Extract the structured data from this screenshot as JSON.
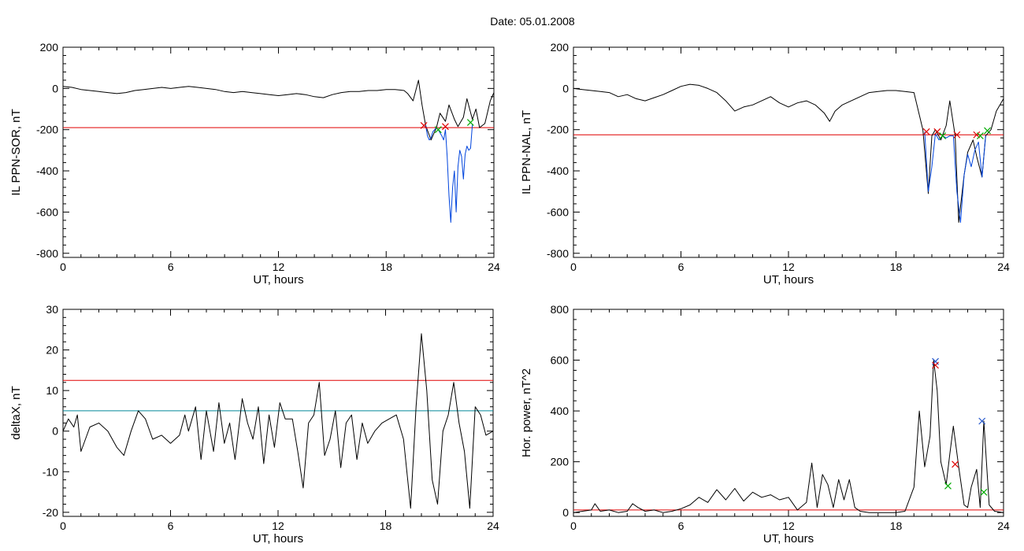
{
  "page": {
    "title": "Date:  05.01.2008"
  },
  "chart_data": [
    {
      "type": "line",
      "panel": "top-left",
      "title": "",
      "xlabel": "UT, hours",
      "ylabel": "IL PPN-SOR, nT",
      "xlim": [
        0,
        24
      ],
      "ylim": [
        -820,
        200
      ],
      "xticks": [
        "0",
        "6",
        "12",
        "18",
        "24"
      ],
      "yticks": [
        "200",
        "0",
        "-200",
        "-400",
        "-600",
        "-800"
      ],
      "threshold": {
        "value": -190,
        "color": "#e00000"
      },
      "series": [
        {
          "color": "#000000",
          "x": [
            0,
            0.5,
            1,
            1.5,
            2,
            2.5,
            3,
            3.5,
            4,
            4.5,
            5,
            5.5,
            6,
            6.5,
            7,
            7.5,
            8,
            8.5,
            9,
            9.5,
            10,
            10.5,
            11,
            11.5,
            12,
            12.5,
            13,
            13.5,
            14,
            14.5,
            15,
            15.5,
            16,
            16.5,
            17,
            17.5,
            18,
            18.5,
            19,
            19.2,
            19.5,
            19.8,
            20.0,
            20.2,
            20.5,
            20.8,
            21.0,
            21.3,
            21.5,
            21.8,
            22.0,
            22.3,
            22.5,
            22.8,
            23.0,
            23.2,
            23.5,
            23.8,
            24.0
          ],
          "y": [
            10,
            5,
            -5,
            -10,
            -15,
            -20,
            -25,
            -20,
            -10,
            -5,
            0,
            5,
            0,
            5,
            10,
            5,
            0,
            -5,
            -15,
            -20,
            -15,
            -20,
            -25,
            -30,
            -35,
            -30,
            -25,
            -30,
            -40,
            -45,
            -30,
            -20,
            -15,
            -15,
            -10,
            -10,
            -5,
            -5,
            -10,
            -25,
            -60,
            40,
            -80,
            -180,
            -250,
            -190,
            -120,
            -160,
            -80,
            -150,
            -185,
            -140,
            -50,
            -150,
            -100,
            -190,
            -170,
            -60,
            -20
          ]
        },
        {
          "color": "#0044dd",
          "x": [
            20.2,
            20.3,
            20.4,
            20.5,
            20.6,
            20.7,
            20.8,
            20.9,
            21.0,
            21.1,
            21.2,
            21.3,
            21.4,
            21.5,
            21.6,
            21.7,
            21.8,
            21.9,
            22.0,
            22.1,
            22.2,
            22.3,
            22.4,
            22.5,
            22.6,
            22.7,
            22.8
          ],
          "y": [
            -180,
            -230,
            -250,
            -240,
            -210,
            -200,
            -190,
            -200,
            -215,
            -230,
            -250,
            -200,
            -330,
            -520,
            -650,
            -480,
            -400,
            -600,
            -380,
            -300,
            -330,
            -440,
            -320,
            -280,
            -300,
            -290,
            -175
          ]
        }
      ],
      "markers": [
        {
          "x": 20.1,
          "y": -180,
          "color": "#dd0000"
        },
        {
          "x": 20.9,
          "y": -200,
          "color": "#00aa00"
        },
        {
          "x": 21.3,
          "y": -185,
          "color": "#dd0000"
        },
        {
          "x": 22.7,
          "y": -165,
          "color": "#00aa00"
        }
      ]
    },
    {
      "type": "line",
      "panel": "top-right",
      "title": "",
      "xlabel": "UT, hours",
      "ylabel": "IL PPN-NAL, nT",
      "xlim": [
        0,
        24
      ],
      "ylim": [
        -820,
        200
      ],
      "xticks": [
        "0",
        "6",
        "12",
        "18",
        "24"
      ],
      "yticks": [
        "200",
        "0",
        "-200",
        "-400",
        "-600",
        "-800"
      ],
      "threshold": {
        "value": -225,
        "color": "#e00000"
      },
      "series": [
        {
          "color": "#000000",
          "x": [
            0,
            0.5,
            1,
            1.5,
            2,
            2.5,
            3,
            3.5,
            4,
            4.5,
            5,
            5.5,
            6,
            6.5,
            7,
            7.5,
            8,
            8.5,
            9,
            9.5,
            10,
            10.5,
            11,
            11.5,
            12,
            12.5,
            13,
            13.5,
            14,
            14.3,
            14.6,
            15,
            15.5,
            16,
            16.5,
            17,
            17.5,
            18,
            18.5,
            19,
            19.5,
            19.8,
            20.0,
            20.2,
            20.5,
            20.8,
            21.0,
            21.3,
            21.5,
            21.8,
            22.0,
            22.3,
            22.5,
            22.8,
            23.0,
            23.3,
            23.6,
            24.0
          ],
          "y": [
            0,
            -5,
            -10,
            -15,
            -20,
            -40,
            -30,
            -50,
            -60,
            -45,
            -30,
            -10,
            10,
            20,
            15,
            0,
            -20,
            -60,
            -110,
            -90,
            -80,
            -60,
            -40,
            -70,
            -90,
            -70,
            -60,
            -80,
            -120,
            -160,
            -110,
            -80,
            -60,
            -40,
            -20,
            -15,
            -10,
            -10,
            -15,
            -20,
            -200,
            -510,
            -230,
            -200,
            -250,
            -180,
            -60,
            -230,
            -650,
            -420,
            -310,
            -250,
            -330,
            -430,
            -230,
            -200,
            -110,
            -50
          ]
        },
        {
          "color": "#0044dd",
          "x": [
            19.6,
            19.8,
            20.0,
            20.2,
            20.4,
            20.6,
            20.8,
            21.0,
            21.2,
            21.4,
            21.6,
            21.8,
            22.0,
            22.2,
            22.4,
            22.6,
            22.8,
            23.0
          ],
          "y": [
            -210,
            -500,
            -380,
            -220,
            -250,
            -230,
            -240,
            -230,
            -230,
            -500,
            -650,
            -420,
            -320,
            -380,
            -300,
            -260,
            -430,
            -230
          ]
        }
      ],
      "markers": [
        {
          "x": 19.7,
          "y": -210,
          "color": "#dd0000"
        },
        {
          "x": 20.3,
          "y": -210,
          "color": "#dd0000"
        },
        {
          "x": 20.6,
          "y": -230,
          "color": "#00aa00"
        },
        {
          "x": 21.4,
          "y": -225,
          "color": "#dd0000"
        },
        {
          "x": 22.5,
          "y": -225,
          "color": "#dd0000"
        },
        {
          "x": 22.7,
          "y": -230,
          "color": "#00aa00"
        },
        {
          "x": 23.1,
          "y": -205,
          "color": "#00aa00"
        }
      ]
    },
    {
      "type": "line",
      "panel": "bottom-left",
      "title": "",
      "xlabel": "UT, hours",
      "ylabel": "deltaX, nT",
      "xlim": [
        0,
        24
      ],
      "ylim": [
        -21,
        30
      ],
      "xticks": [
        "0",
        "6",
        "12",
        "18",
        "24"
      ],
      "yticks": [
        "30",
        "20",
        "10",
        "0",
        "-10",
        "-20"
      ],
      "thresholds": [
        {
          "value": 12.5,
          "color": "#e00000"
        },
        {
          "value": 5,
          "color": "#008899"
        }
      ],
      "series": [
        {
          "color": "#000000",
          "x": [
            0,
            0.3,
            0.6,
            0.8,
            1.0,
            1.5,
            2.0,
            2.5,
            3.0,
            3.4,
            3.8,
            4.2,
            4.6,
            5.0,
            5.5,
            6.0,
            6.5,
            6.8,
            7.0,
            7.4,
            7.7,
            8.0,
            8.4,
            8.7,
            9.0,
            9.3,
            9.6,
            10.0,
            10.3,
            10.6,
            10.9,
            11.2,
            11.5,
            11.8,
            12.1,
            12.4,
            12.8,
            13.1,
            13.4,
            13.7,
            14.0,
            14.3,
            14.6,
            14.9,
            15.2,
            15.5,
            15.8,
            16.1,
            16.4,
            16.7,
            17.0,
            17.4,
            17.8,
            18.2,
            18.6,
            19.0,
            19.4,
            19.7,
            20.0,
            20.3,
            20.6,
            20.9,
            21.2,
            21.5,
            21.8,
            22.1,
            22.4,
            22.7,
            23.0,
            23.3,
            23.6,
            24.0
          ],
          "y": [
            0,
            3,
            1,
            4,
            -5,
            1,
            2,
            0,
            -4,
            -6,
            0,
            5,
            3,
            -2,
            -1,
            -3,
            -1,
            4,
            0,
            6,
            -7,
            5,
            -5,
            7,
            -3,
            2,
            -7,
            8,
            2,
            -2,
            6,
            -8,
            4,
            -4,
            7,
            3,
            3,
            -5,
            -14,
            2,
            4,
            12,
            -6,
            -2,
            5,
            -9,
            2,
            4,
            -7,
            2,
            -3,
            0,
            2,
            3,
            4,
            -2,
            -19,
            6,
            24,
            10,
            -12,
            -18,
            0,
            4,
            12,
            2,
            -5,
            -19,
            6,
            4,
            -1,
            0
          ]
        }
      ]
    },
    {
      "type": "line",
      "panel": "bottom-right",
      "title": "",
      "xlabel": "UT, hours",
      "ylabel": "Hor. power, nT^2",
      "xlim": [
        0,
        24
      ],
      "ylim": [
        -15,
        800
      ],
      "xticks": [
        "0",
        "6",
        "12",
        "18",
        "24"
      ],
      "yticks": [
        "800",
        "600",
        "400",
        "200",
        "0"
      ],
      "threshold": {
        "value": 10,
        "color": "#e00000"
      },
      "series": [
        {
          "color": "#000000",
          "x": [
            0,
            0.5,
            1.0,
            1.2,
            1.5,
            2.0,
            2.5,
            3.0,
            3.3,
            3.6,
            4.0,
            4.5,
            5.0,
            5.5,
            6.0,
            6.5,
            7.0,
            7.5,
            8.0,
            8.5,
            9.0,
            9.5,
            10.0,
            10.5,
            11.0,
            11.5,
            12.0,
            12.5,
            13.0,
            13.3,
            13.6,
            13.9,
            14.2,
            14.5,
            14.8,
            15.1,
            15.4,
            15.7,
            16.0,
            16.5,
            17.0,
            17.5,
            18.0,
            18.5,
            19.0,
            19.3,
            19.6,
            19.9,
            20.1,
            20.3,
            20.5,
            20.8,
            21.0,
            21.2,
            21.5,
            21.8,
            22.0,
            22.2,
            22.5,
            22.7,
            22.9,
            23.2,
            23.5,
            24.0
          ],
          "y": [
            0,
            5,
            10,
            35,
            5,
            10,
            0,
            5,
            35,
            20,
            5,
            10,
            0,
            5,
            15,
            30,
            60,
            40,
            90,
            50,
            95,
            45,
            80,
            60,
            70,
            50,
            60,
            10,
            40,
            195,
            20,
            150,
            110,
            20,
            130,
            50,
            130,
            20,
            5,
            0,
            0,
            0,
            0,
            5,
            100,
            400,
            180,
            300,
            600,
            480,
            200,
            110,
            230,
            340,
            180,
            30,
            20,
            100,
            170,
            20,
            360,
            30,
            5,
            0
          ]
        }
      ],
      "markers": [
        {
          "x": 20.2,
          "y": 595,
          "color": "#2255cc"
        },
        {
          "x": 20.2,
          "y": 580,
          "color": "#dd0000"
        },
        {
          "x": 20.9,
          "y": 105,
          "color": "#00aa00"
        },
        {
          "x": 21.3,
          "y": 190,
          "color": "#dd0000"
        },
        {
          "x": 22.8,
          "y": 360,
          "color": "#2255cc"
        },
        {
          "x": 22.9,
          "y": 80,
          "color": "#00aa00"
        }
      ]
    }
  ]
}
